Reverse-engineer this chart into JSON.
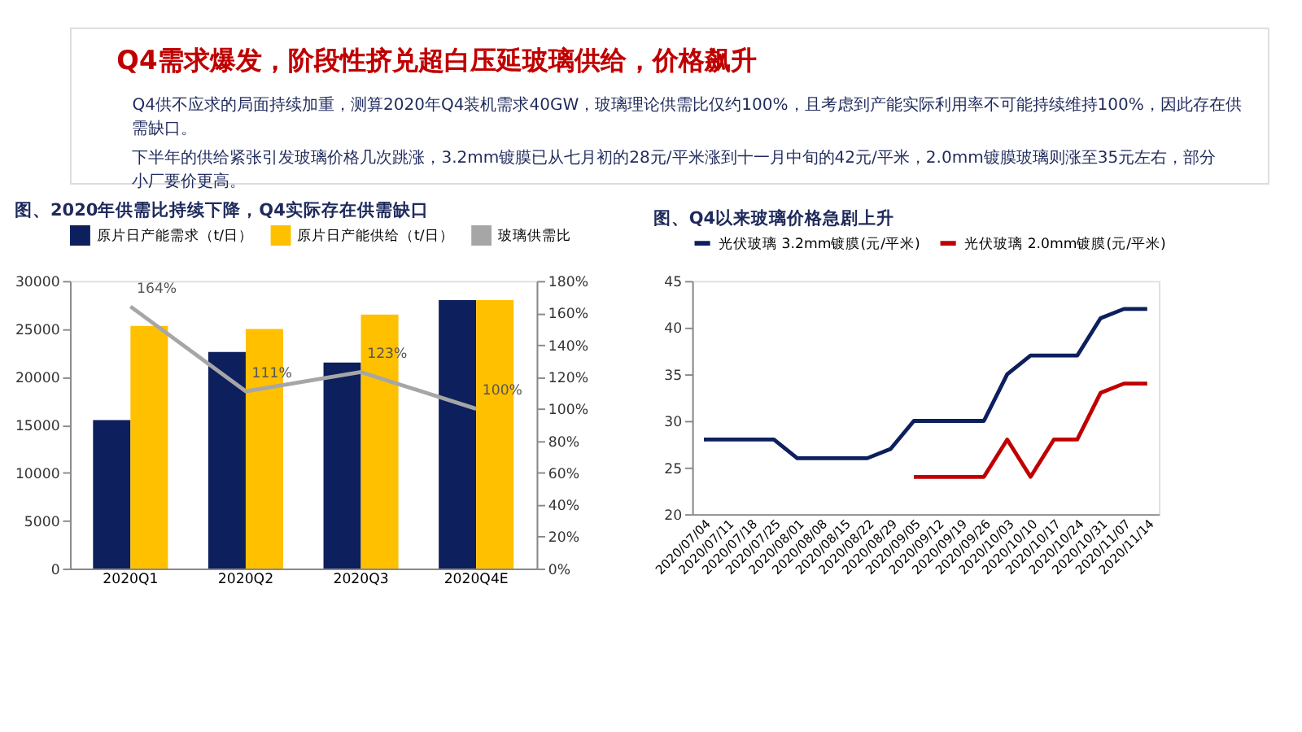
{
  "chart_data": [
    {
      "type": "bar",
      "title": "图、2020年供需比持续下降，Q4实际存在供需缺口",
      "annotations": [
        "Q4需求爆发，阶段性挤兑超白压延玻璃供给，价格飙升",
        "Q4供不应求的局面持续加重，测算2020年Q4装机需求40GW，玻璃理论供需比仅约100%，且考虑到产能实际利用率不可能持续维持100%，因此存在供需缺口。",
        "下半年的供给紧张引发玻璃价格几次跳涨，3.2mm镀膜已从七月初的28元/平米涨到十一月中旬的42元/平米，2.0mm镀膜玻璃则涨至35元左右，部分小厂要价更高。"
      ],
      "categories": [
        "2020Q1",
        "2020Q2",
        "2020Q3",
        "2020Q4E"
      ],
      "series": [
        {
          "name": "原片日产能需求（t/日）",
          "color": "#0d1f5c",
          "values": [
            15500,
            22600,
            21500,
            28000
          ]
        },
        {
          "name": "原片日产能供给（t/日）",
          "color": "#ffc000",
          "values": [
            25300,
            25000,
            26500,
            28000
          ]
        },
        {
          "name": "玻璃供需比",
          "color": "#a6a6a6",
          "type": "line",
          "axis": "y2",
          "values": [
            164,
            111,
            123,
            100
          ],
          "value_labels": [
            "164%",
            "111%",
            "123%",
            "100%"
          ]
        }
      ],
      "ylim": [
        0,
        30000
      ],
      "yticks": [
        0,
        5000,
        10000,
        15000,
        20000,
        25000,
        30000
      ],
      "y2lim": [
        0,
        180
      ],
      "y2ticks": [
        {
          "value": 0,
          "label": "0%"
        },
        {
          "value": 20,
          "label": "20%"
        },
        {
          "value": 40,
          "label": "40%"
        },
        {
          "value": 60,
          "label": "60%"
        },
        {
          "value": 80,
          "label": "80%"
        },
        {
          "value": 100,
          "label": "100%"
        },
        {
          "value": 120,
          "label": "120%"
        },
        {
          "value": 140,
          "label": "140%"
        },
        {
          "value": 160,
          "label": "160%"
        },
        {
          "value": 180,
          "label": "180%"
        }
      ],
      "grid": false,
      "legend": "top"
    },
    {
      "type": "line",
      "title": "图、Q4以来玻璃价格急剧上升",
      "categories": [
        "2020/07/04",
        "2020/07/11",
        "2020/07/18",
        "2020/07/25",
        "2020/08/01",
        "2020/08/08",
        "2020/08/15",
        "2020/08/22",
        "2020/08/29",
        "2020/09/05",
        "2020/09/12",
        "2020/09/19",
        "2020/09/26",
        "2020/10/03",
        "2020/10/10",
        "2020/10/17",
        "2020/10/24",
        "2020/10/31",
        "2020/11/07",
        "2020/11/14"
      ],
      "series": [
        {
          "name": "光伏玻璃 3.2mm镀膜(元/平米)",
          "color": "#0d1f5c",
          "values": [
            28,
            28,
            28,
            28,
            26,
            26,
            26,
            26,
            27,
            30,
            30,
            30,
            30,
            35,
            37,
            37,
            37,
            41,
            42,
            42
          ]
        },
        {
          "name": "光伏玻璃 2.0mm镀膜(元/平米)",
          "color": "#c00000",
          "values": [
            null,
            null,
            null,
            null,
            null,
            null,
            null,
            null,
            null,
            24,
            24,
            24,
            24,
            28,
            24,
            28,
            28,
            33,
            34,
            34
          ]
        }
      ],
      "ylim": [
        20,
        45
      ],
      "yticks": [
        20,
        25,
        30,
        35,
        40,
        45
      ],
      "grid": false,
      "legend": "top",
      "marker": "none",
      "line_style": "solid"
    }
  ]
}
